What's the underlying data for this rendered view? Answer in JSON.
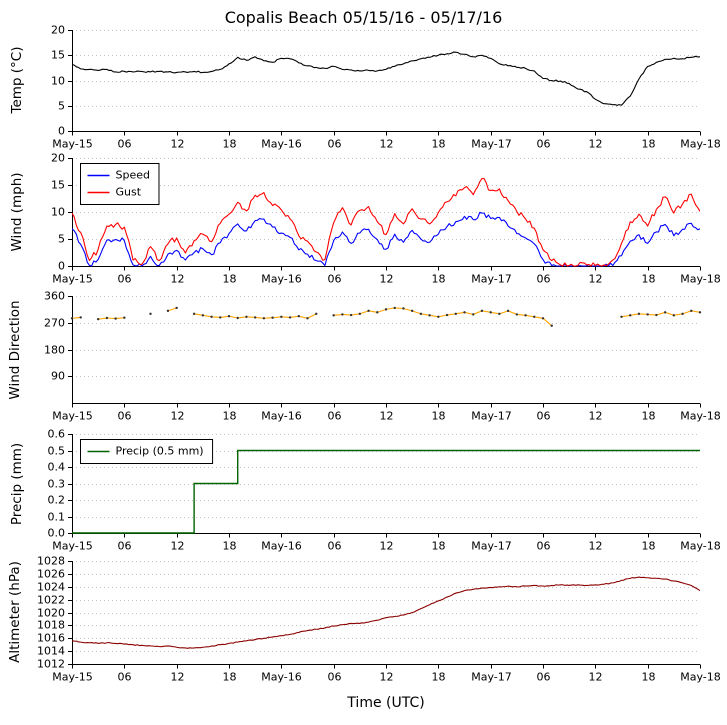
{
  "title": "Copalis Beach 05/15/16 - 05/17/16",
  "x_axis": {
    "label": "Time (UTC)",
    "range_hours": [
      0,
      72
    ],
    "tick_hours": [
      0,
      6,
      12,
      18,
      24,
      30,
      36,
      42,
      48,
      54,
      60,
      66,
      72
    ],
    "tick_labels": [
      "May-15",
      "06",
      "12",
      "18",
      "May-16",
      "06",
      "12",
      "18",
      "May-17",
      "06",
      "12",
      "18",
      "May-18"
    ]
  },
  "x_hours": [
    0,
    1,
    2,
    3,
    4,
    5,
    6,
    7,
    8,
    9,
    10,
    11,
    12,
    13,
    14,
    15,
    16,
    17,
    18,
    19,
    20,
    21,
    22,
    23,
    24,
    25,
    26,
    27,
    28,
    29,
    30,
    31,
    32,
    33,
    34,
    35,
    36,
    37,
    38,
    39,
    40,
    41,
    42,
    43,
    44,
    45,
    46,
    47,
    48,
    49,
    50,
    51,
    52,
    53,
    54,
    55,
    56,
    57,
    58,
    59,
    60,
    61,
    62,
    63,
    64,
    65,
    66,
    67,
    68,
    69,
    70,
    71,
    72
  ],
  "chart_data": [
    {
      "id": "temperature",
      "type": "line",
      "ylabel": "Temp (°C)",
      "ylim": [
        0,
        20
      ],
      "yticks": [
        0,
        5,
        10,
        15,
        20
      ],
      "ytick_labels": [
        "0",
        "5",
        "10",
        "15",
        "20"
      ],
      "grid": true,
      "color": "#000000",
      "values": [
        13.2,
        12.3,
        12.2,
        12.0,
        12.2,
        11.7,
        11.8,
        11.7,
        11.8,
        11.7,
        11.8,
        11.7,
        11.6,
        11.7,
        11.8,
        11.6,
        11.8,
        12.2,
        13.3,
        14.6,
        14.0,
        14.7,
        13.9,
        13.6,
        14.4,
        14.3,
        13.5,
        12.9,
        12.6,
        12.4,
        12.8,
        12.2,
        12.1,
        11.9,
        12.0,
        11.9,
        12.2,
        12.8,
        13.3,
        13.9,
        14.3,
        14.6,
        15.0,
        15.3,
        15.6,
        15.2,
        14.7,
        15.0,
        14.4,
        13.3,
        12.9,
        12.6,
        12.4,
        11.9,
        10.4,
        10.0,
        9.9,
        9.4,
        8.3,
        7.8,
        6.3,
        5.4,
        5.2,
        5.1,
        6.9,
        10.3,
        12.8,
        13.6,
        14.2,
        14.4,
        14.3,
        14.6,
        14.7
      ]
    },
    {
      "id": "wind",
      "type": "line",
      "ylabel": "Wind (mph)",
      "ylim": [
        0,
        20
      ],
      "yticks": [
        0,
        5,
        10,
        15,
        20
      ],
      "ytick_labels": [
        "0",
        "5",
        "10",
        "15",
        "20"
      ],
      "grid": true,
      "legend": {
        "position": "upper-left",
        "entries": [
          {
            "label": "Speed",
            "color": "#0000ff"
          },
          {
            "label": "Gust",
            "color": "#ff0000"
          }
        ]
      },
      "series": [
        {
          "name": "Speed",
          "color": "#0000ff",
          "values": [
            6.9,
            4.0,
            0.1,
            1.2,
            4.8,
            4.9,
            4.7,
            0.2,
            0.0,
            1.8,
            0.1,
            2.2,
            2.9,
            1.1,
            2.5,
            3.2,
            2.1,
            4.3,
            6.0,
            7.8,
            6.5,
            8.4,
            8.7,
            7.2,
            6.1,
            5.3,
            3.0,
            2.2,
            1.0,
            0.1,
            4.7,
            6.3,
            4.2,
            6.1,
            6.8,
            4.9,
            3.1,
            5.9,
            4.4,
            6.6,
            5.0,
            4.4,
            5.9,
            7.3,
            8.2,
            9.2,
            8.6,
            9.8,
            8.8,
            9.0,
            7.4,
            6.0,
            5.2,
            4.1,
            1.2,
            0.1,
            0.0,
            0.0,
            0.0,
            0.0,
            0.0,
            0.0,
            0.1,
            1.9,
            4.6,
            5.8,
            4.2,
            6.3,
            7.7,
            5.6,
            6.8,
            7.9,
            6.9
          ]
        },
        {
          "name": "Gust",
          "color": "#ff0000",
          "values": [
            9.8,
            6.2,
            1.0,
            3.1,
            7.4,
            7.7,
            7.2,
            1.1,
            0.3,
            3.6,
            1.0,
            4.1,
            5.2,
            2.4,
            4.7,
            5.9,
            4.5,
            7.9,
            9.6,
            11.8,
            10.2,
            13.1,
            13.6,
            11.2,
            10.4,
            8.7,
            5.6,
            4.6,
            2.6,
            1.2,
            8.0,
            10.8,
            7.6,
            10.3,
            11.0,
            8.2,
            5.8,
            9.7,
            7.8,
            10.6,
            8.7,
            7.8,
            9.9,
            11.9,
            13.0,
            14.5,
            13.2,
            16.2,
            14.0,
            14.3,
            12.1,
            10.1,
            8.7,
            7.0,
            3.0,
            1.0,
            0.2,
            0.1,
            0.1,
            0.2,
            0.1,
            0.2,
            1.1,
            4.2,
            8.2,
            9.6,
            7.4,
            10.5,
            12.8,
            9.8,
            11.5,
            13.3,
            10.1
          ]
        }
      ]
    },
    {
      "id": "wind_direction",
      "type": "scatter-line",
      "ylabel": "Wind Direction",
      "ylim": [
        0,
        360
      ],
      "yticks": [
        90,
        180,
        270,
        360
      ],
      "ytick_labels": [
        "90",
        "180",
        "270",
        "360"
      ],
      "grid": true,
      "color": "#ffa500",
      "marker_color": "#333333",
      "values": [
        285,
        288,
        null,
        282,
        286,
        284,
        287,
        null,
        null,
        300,
        null,
        310,
        320,
        null,
        300,
        295,
        290,
        288,
        292,
        286,
        290,
        288,
        285,
        287,
        290,
        288,
        292,
        285,
        300,
        null,
        295,
        298,
        296,
        300,
        310,
        305,
        315,
        320,
        318,
        310,
        300,
        295,
        290,
        296,
        300,
        305,
        298,
        310,
        305,
        300,
        310,
        298,
        295,
        290,
        285,
        260,
        null,
        null,
        null,
        null,
        null,
        null,
        null,
        290,
        295,
        300,
        298,
        296,
        305,
        295,
        300,
        310,
        305
      ]
    },
    {
      "id": "precip",
      "type": "step",
      "ylabel": "Precip (mm)",
      "ylim": [
        0,
        0.6
      ],
      "yticks": [
        0,
        0.1,
        0.2,
        0.3,
        0.4,
        0.5,
        0.6
      ],
      "ytick_labels": [
        "0.0",
        "0.1",
        "0.2",
        "0.3",
        "0.4",
        "0.5",
        "0.6"
      ],
      "grid": true,
      "legend": {
        "position": "upper-left",
        "entries": [
          {
            "label": "Precip (0.5 mm)",
            "color": "#006400"
          }
        ]
      },
      "color": "#006400",
      "values": [
        0,
        0,
        0,
        0,
        0,
        0,
        0,
        0,
        0,
        0,
        0,
        0,
        0,
        0,
        0.3,
        0.3,
        0.3,
        0.3,
        0.3,
        0.5,
        0.5,
        0.5,
        0.5,
        0.5,
        0.5,
        0.5,
        0.5,
        0.5,
        0.5,
        0.5,
        0.5,
        0.5,
        0.5,
        0.5,
        0.5,
        0.5,
        0.5,
        0.5,
        0.5,
        0.5,
        0.5,
        0.5,
        0.5,
        0.5,
        0.5,
        0.5,
        0.5,
        0.5,
        0.5,
        0.5,
        0.5,
        0.5,
        0.5,
        0.5,
        0.5,
        0.5,
        0.5,
        0.5,
        0.5,
        0.5,
        0.5,
        0.5,
        0.5,
        0.5,
        0.5,
        0.5,
        0.5,
        0.5,
        0.5,
        0.5,
        0.5,
        0.5,
        0.5
      ]
    },
    {
      "id": "altimeter",
      "type": "line",
      "ylabel": "Altimeter (hPa)",
      "ylim": [
        1012,
        1028
      ],
      "yticks": [
        1012,
        1014,
        1016,
        1018,
        1020,
        1022,
        1024,
        1026,
        1028
      ],
      "ytick_labels": [
        "1012",
        "1014",
        "1016",
        "1018",
        "1020",
        "1022",
        "1024",
        "1026",
        "1028"
      ],
      "grid": true,
      "color": "#8b0000",
      "values": [
        1015.6,
        1015.4,
        1015.3,
        1015.2,
        1015.3,
        1015.2,
        1015.1,
        1015.0,
        1014.9,
        1014.8,
        1014.7,
        1014.8,
        1014.6,
        1014.5,
        1014.5,
        1014.6,
        1014.8,
        1015.0,
        1015.2,
        1015.4,
        1015.6,
        1015.8,
        1016.0,
        1016.2,
        1016.4,
        1016.6,
        1016.9,
        1017.2,
        1017.4,
        1017.6,
        1017.9,
        1018.1,
        1018.3,
        1018.3,
        1018.5,
        1018.8,
        1019.2,
        1019.4,
        1019.6,
        1020.0,
        1020.6,
        1021.2,
        1021.8,
        1022.4,
        1023.0,
        1023.4,
        1023.6,
        1023.8,
        1023.9,
        1024.0,
        1024.1,
        1024.0,
        1024.1,
        1024.2,
        1024.1,
        1024.2,
        1024.3,
        1024.2,
        1024.3,
        1024.2,
        1024.3,
        1024.4,
        1024.6,
        1025.0,
        1025.3,
        1025.5,
        1025.4,
        1025.3,
        1025.2,
        1024.9,
        1024.6,
        1024.2,
        1023.4
      ]
    }
  ]
}
